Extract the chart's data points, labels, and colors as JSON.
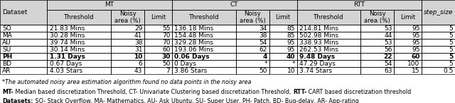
{
  "columns": {
    "Dataset": [
      "SO",
      "MA",
      "AU",
      "SU",
      "PH",
      "BD",
      "AR"
    ],
    "MT_Threshold": [
      "21.83 Mins",
      "30.28 Mins",
      "39.74 Mins",
      "30.14 Mins",
      "1.31 Days",
      "0.67 Days",
      "4.03 Stars"
    ],
    "MT_Noisy": [
      "29",
      "41",
      "38",
      "31",
      "10",
      "6",
      "43"
    ],
    "MT_Limit": [
      "55",
      "70",
      "70",
      "60",
      "30",
      "50",
      "7"
    ],
    "CT_Threshold": [
      "136.18 Mins",
      "154.48 Mins",
      "329.28 Mins",
      "193.06 Mins",
      "0.06 Days",
      "0 Days",
      "3.86 Stars"
    ],
    "CT_Noisy": [
      "34",
      "38",
      "54",
      "62",
      "4",
      "*",
      "50"
    ],
    "CT_Limit": [
      "85",
      "85",
      "95",
      "95",
      "40",
      "*",
      "10"
    ],
    "RTT_Threshold": [
      "214.81 Mins",
      "502.98 Mins",
      "338.93 Mins",
      "262.53 Mins",
      "9.48 Days",
      "47.29 Days",
      "3.74 Stars"
    ],
    "RTT_Noisy": [
      "53",
      "44",
      "53",
      "56",
      "22",
      "54",
      "63"
    ],
    "RTT_Limit": [
      "95",
      "95",
      "95",
      "95",
      "60",
      "100",
      "15"
    ],
    "step_size": [
      "5",
      "5",
      "5",
      "5",
      "5",
      "5",
      "0.5"
    ]
  },
  "footnote1": "*The automated noisy area estimation algorithm found no data points in the noisy area",
  "footnote2_bold": "MT-",
  "footnote2_rest": " Median based discretization Threshold, CT- Univariate Clustering based discretization Threshold, RTT- CART based discretization threshold",
  "footnote3_bold": "Datasets:",
  "footnote3_rest": " SO- Stack Overflow, MA- Mathematics, AU- Ask Ubuntu, SU- Super User, PH- Patch, BD- Bug-delay, AR- App-rating",
  "header_gray": "#d4d4d4",
  "font_size": 6.5,
  "footnote_font_size": 5.8
}
